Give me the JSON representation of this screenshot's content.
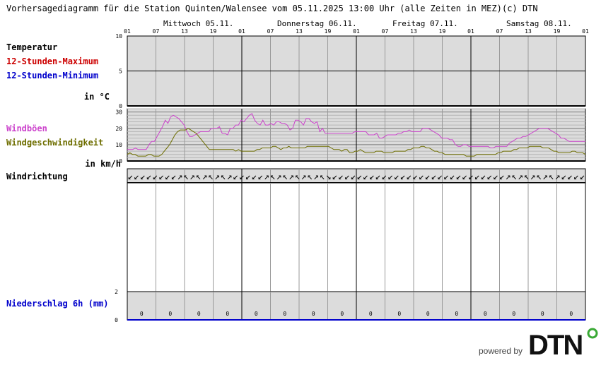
{
  "header": {
    "title": "Vorhersagediagramm für die Station Quinten/Walensee vom 05.11.2025 13:00 Uhr (alle Zeiten in MEZ)",
    "copyright": "(c) DTN"
  },
  "days": [
    "Mittwoch 05.11.",
    "Donnerstag 06.11.",
    "Freitag 07.11.",
    "Samstag 08.11."
  ],
  "hour_ticks": [
    "01",
    "07",
    "13",
    "19",
    "01",
    "07",
    "13",
    "19",
    "01",
    "07",
    "13",
    "19",
    "01",
    "07",
    "13",
    "19",
    "01"
  ],
  "labels": {
    "temperature": "Temperatur",
    "max12": "12-Stunden-Maximum",
    "min12": "12-Stunden-Minimum",
    "temp_unit": "in °C",
    "gusts": "Windböen",
    "wind_speed": "Windgeschwindigkeit",
    "wind_unit": "in km/h",
    "wind_direction": "Windrichtung",
    "precip": "Niederschlag 6h (mm)"
  },
  "branding": {
    "powered_by": "powered by",
    "logo": "DTN"
  },
  "colors": {
    "panel_bg": "#dcdcdc",
    "max_red": "#cc0000",
    "min_blue": "#0000cc",
    "gust_magenta": "#cc44cc",
    "wind_olive": "#6e6e00",
    "precip_blue": "#0000cc"
  },
  "chart_data": [
    {
      "type": "line",
      "panel": "temperature",
      "x": "hours since 05.11. 01:00",
      "ylim": [
        0,
        10
      ],
      "yticks": [
        0,
        5,
        10
      ],
      "series": []
    },
    {
      "type": "line",
      "panel": "wind",
      "ylim": [
        0,
        32
      ],
      "yticks": [
        0,
        10,
        20,
        30
      ],
      "x_step_hours": 1,
      "series": [
        {
          "name": "Windböen",
          "values": [
            7,
            7,
            7,
            8,
            7,
            7,
            7,
            7,
            10,
            12,
            12,
            15,
            18,
            21,
            25,
            23,
            27,
            28,
            27,
            26,
            24,
            22,
            18,
            15,
            15,
            16,
            17,
            18,
            18,
            18,
            18,
            20,
            20,
            20,
            21,
            17,
            17,
            16,
            20,
            20,
            22,
            22,
            25,
            24,
            26,
            28,
            29,
            25,
            23,
            22,
            25,
            22,
            22,
            23,
            22,
            24,
            24,
            23,
            23,
            22,
            19,
            20,
            25,
            25,
            24,
            22,
            26,
            26,
            24,
            23,
            24,
            18,
            20,
            17,
            17,
            17,
            17,
            17,
            17,
            17,
            17,
            17,
            17,
            17,
            18,
            18,
            18,
            18,
            18,
            16,
            16,
            16,
            17,
            14,
            14,
            15,
            16,
            16,
            16,
            16,
            17,
            17,
            18,
            18,
            19,
            18,
            18,
            18,
            18,
            20,
            20,
            20,
            19,
            18,
            17,
            16,
            14,
            14,
            14,
            13,
            13,
            10,
            9,
            9,
            10,
            10,
            9,
            9,
            9,
            9,
            9,
            9,
            9,
            9,
            8,
            8,
            9,
            9,
            9,
            9,
            9,
            11,
            12,
            13,
            14,
            14,
            15,
            15,
            16,
            17,
            18,
            19,
            20,
            20,
            20,
            20,
            19,
            18,
            17,
            16,
            14,
            14,
            13,
            12,
            12,
            12,
            12,
            12,
            12,
            12
          ]
        },
        {
          "name": "Windgeschwindigkeit",
          "values": [
            4,
            5,
            4,
            4,
            3,
            3,
            3,
            3,
            4,
            4,
            3,
            3,
            3,
            4,
            6,
            8,
            10,
            13,
            16,
            18,
            19,
            19,
            19,
            20,
            19,
            18,
            17,
            15,
            13,
            11,
            9,
            7,
            7,
            7,
            7,
            7,
            7,
            7,
            7,
            7,
            7,
            6,
            7,
            6,
            6,
            6,
            6,
            6,
            6,
            7,
            7,
            8,
            8,
            8,
            8,
            9,
            9,
            8,
            7,
            8,
            8,
            9,
            8,
            8,
            8,
            8,
            8,
            8,
            9,
            9,
            9,
            9,
            9,
            9,
            9,
            9,
            9,
            8,
            7,
            7,
            7,
            6,
            7,
            7,
            5,
            5,
            6,
            6,
            7,
            6,
            5,
            5,
            5,
            5,
            6,
            6,
            6,
            5,
            5,
            5,
            5,
            6,
            6,
            6,
            6,
            6,
            7,
            7,
            8,
            8,
            8,
            9,
            9,
            8,
            8,
            7,
            6,
            6,
            5,
            5,
            4,
            4,
            4,
            4,
            4,
            4,
            4,
            4,
            3,
            3,
            3,
            3,
            4,
            4,
            4,
            4,
            4,
            4,
            4,
            4,
            5,
            5,
            6,
            6,
            6,
            6,
            7,
            7,
            8,
            8,
            8,
            8,
            9,
            9,
            9,
            9,
            9,
            8,
            8,
            8,
            7,
            6,
            6,
            5,
            5,
            5,
            5,
            5,
            6,
            6,
            5,
            5,
            5,
            4
          ]
        }
      ]
    },
    {
      "type": "bar",
      "panel": "precipitation",
      "ylim": [
        0,
        2
      ],
      "yticks": [
        0,
        2
      ],
      "values": [
        0,
        0,
        0,
        0,
        0,
        0,
        0,
        0,
        0,
        0,
        0,
        0,
        0,
        0,
        0,
        0
      ],
      "value_labels": [
        "0",
        "0",
        "0",
        "0",
        "0",
        "0",
        "0",
        "0",
        "0",
        "0",
        "0",
        "0",
        "0",
        "0",
        "0",
        "0"
      ]
    }
  ],
  "wind_directions": [
    "↙",
    "↙",
    "↙",
    "↙",
    "↙",
    "↙",
    "↙",
    "↙",
    "↗",
    "↖",
    "↗",
    "↖",
    "↗",
    "↖",
    "↗",
    "↖",
    "↗",
    "↙",
    "↙",
    "↙",
    "↙",
    "↙",
    "↗",
    "↖",
    "↗",
    "↖",
    "↗",
    "↖",
    "↗",
    "↖",
    "↗",
    "↖",
    "↘",
    "↙",
    "↙",
    "↙",
    "↙",
    "↙",
    "↙",
    "↙",
    "↙",
    "↙",
    "↙",
    "↙",
    "↙",
    "↙",
    "↙",
    "↙",
    "↙",
    "↙",
    "↙",
    "↙",
    "↙",
    "↙",
    "↙",
    "↙",
    "↙",
    "↙",
    "↙",
    "↙",
    "↙",
    "↗",
    "↖",
    "↗",
    "↖",
    "↗",
    "↖",
    "↗",
    "↖",
    "↗",
    "↙",
    "↙",
    "↙",
    "↙"
  ]
}
